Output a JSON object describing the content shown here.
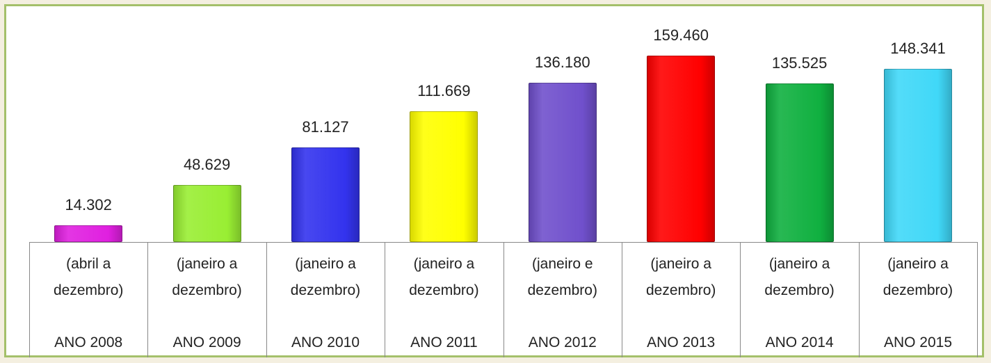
{
  "chart_data": {
    "type": "bar",
    "categories": [
      "ANO 2008",
      "ANO 2009",
      "ANO 2010",
      "ANO 2011",
      "ANO 2012",
      "ANO 2013",
      "ANO 2014",
      "ANO 2015"
    ],
    "subcategories": [
      "(abril a dezembro)",
      "(janeiro a dezembro)",
      "(janeiro a dezembro)",
      "(janeiro a dezembro)",
      "(janeiro e dezembro)",
      "(janeiro a dezembro)",
      "(janeiro a dezembro)",
      "(janeiro a dezembro)"
    ],
    "values": [
      14302,
      48629,
      81127,
      111669,
      136180,
      159460,
      135525,
      148341
    ],
    "value_labels": [
      "14.302",
      "48.629",
      "81.127",
      "111.669",
      "136.180",
      "159.460",
      "135.525",
      "148.341"
    ],
    "colors": [
      "#e020e0",
      "#99ee33",
      "#3333ee",
      "#ffff00",
      "#7050cc",
      "#ff0000",
      "#10b040",
      "#40d8f8"
    ]
  }
}
